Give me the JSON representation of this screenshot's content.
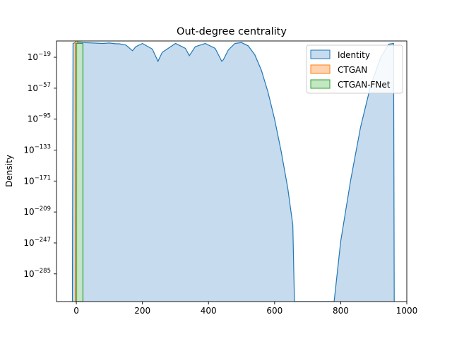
{
  "chart_data": {
    "type": "area",
    "title": "Out-degree centrality",
    "xlabel": "",
    "ylabel": "Density",
    "xlim": [
      -60,
      1000
    ],
    "ylog_exponent_lim": [
      -319,
      1
    ],
    "x_ticks": [
      0,
      200,
      400,
      600,
      800,
      1000
    ],
    "x_tick_labels": [
      "0",
      "200",
      "400",
      "600",
      "800",
      "1000"
    ],
    "y_tick_exponents": [
      -19,
      -57,
      -95,
      -133,
      -171,
      -209,
      -247,
      -285
    ],
    "y_tick_labels": [
      "10−19",
      "10−57",
      "10−95",
      "10−133",
      "10−171",
      "10−209",
      "10−247",
      "10−285"
    ],
    "legend_position": "top-right",
    "grid": false,
    "series": [
      {
        "name": "Identity",
        "color": "#1f77b4",
        "fill": "#c6dbee",
        "x": [
          -12,
          -10,
          0,
          5,
          10,
          20,
          50,
          80,
          100,
          120,
          130,
          150,
          170,
          180,
          200,
          230,
          247,
          260,
          300,
          330,
          342,
          360,
          390,
          420,
          440,
          445,
          460,
          480,
          500,
          520,
          540,
          560,
          580,
          600,
          620,
          640,
          655,
          660,
          780,
          800,
          830,
          860,
          890,
          920,
          945,
          960,
          962
        ],
        "log10_density": [
          -319,
          -2,
          -0.5,
          -0.3,
          -0.5,
          -1,
          -1.5,
          -2,
          -1.5,
          -2.5,
          -2.5,
          -4,
          -11,
          -6,
          -2,
          -9,
          -24,
          -13,
          -2,
          -8,
          -17,
          -6,
          -2,
          -8,
          -24,
          -22,
          -10,
          -2,
          -1,
          -5,
          -16,
          -35,
          -62,
          -95,
          -135,
          -180,
          -225,
          -319,
          -319,
          -245,
          -170,
          -105,
          -55,
          -20,
          -3,
          -2,
          -319
        ]
      },
      {
        "name": "CTGAN",
        "color": "#ff7f0e",
        "fill": "#ffd3b0",
        "x": [
          -3,
          3
        ],
        "log10_density": [
          1,
          1
        ]
      },
      {
        "name": "CTGAN-FNet",
        "color": "#2ca02c",
        "fill": "#c3e6c3",
        "x": [
          0,
          20
        ],
        "log10_density": [
          -2,
          -2
        ]
      }
    ]
  }
}
